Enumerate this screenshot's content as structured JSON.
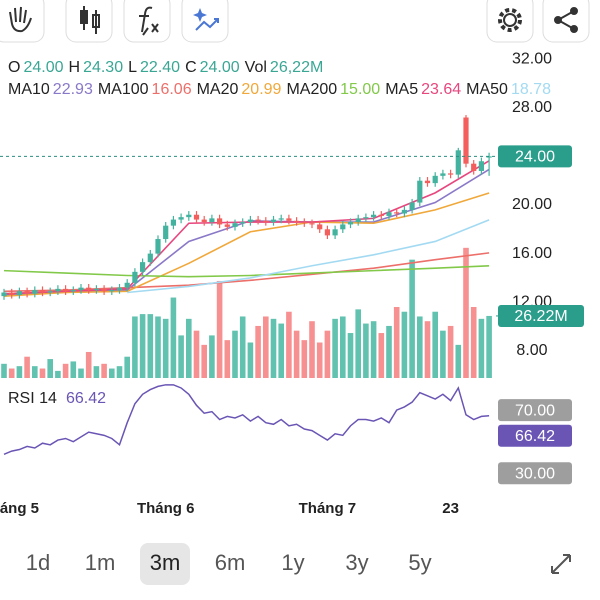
{
  "chart_data": {
    "type": "candlestick",
    "ohlc_legend": [
      {
        "key": "O",
        "value": "24.00"
      },
      {
        "key": "H",
        "value": "24.30"
      },
      {
        "key": "L",
        "value": "22.40"
      },
      {
        "key": "C",
        "value": "24.00"
      },
      {
        "key": "Vol",
        "value": "26,22M"
      }
    ],
    "categories": [
      null,
      null,
      "áng 5",
      null,
      null,
      null,
      null,
      null,
      null,
      null,
      null,
      null,
      null,
      null,
      null,
      null,
      null,
      null,
      null,
      null,
      null,
      "Tháng 6",
      null,
      null,
      null,
      null,
      null,
      null,
      null,
      null,
      null,
      null,
      null,
      null,
      null,
      null,
      null,
      null,
      null,
      null,
      null,
      null,
      "Tháng 7",
      null,
      null,
      null,
      null,
      null,
      null,
      null,
      null,
      null,
      null,
      null,
      null,
      null,
      null,
      null,
      "23",
      null,
      null,
      null,
      null,
      null
    ],
    "open": [
      12.5,
      12.8,
      12.6,
      12.9,
      12.7,
      13.0,
      12.8,
      12.9,
      13.1,
      12.9,
      13.0,
      13.2,
      13.0,
      13.1,
      12.9,
      13.0,
      13.2,
      13.6,
      14.5,
      15.3,
      16.0,
      17.2,
      18.3,
      18.8,
      19.0,
      19.2,
      18.8,
      18.6,
      18.9,
      18.4,
      18.2,
      18.5,
      18.6,
      18.8,
      18.7,
      18.6,
      18.8,
      18.9,
      18.7,
      18.6,
      18.5,
      18.4,
      18.0,
      17.5,
      18.0,
      18.4,
      18.6,
      18.9,
      19.0,
      19.2,
      19.1,
      19.4,
      19.3,
      19.6,
      20.2,
      22.0,
      21.8,
      22.4,
      22.6,
      22.5,
      27.2,
      23.4,
      22.8,
      24.0
    ],
    "high": [
      13.1,
      13.1,
      13.2,
      13.2,
      13.3,
      13.3,
      13.2,
      13.4,
      13.4,
      13.3,
      13.5,
      13.5,
      13.4,
      13.4,
      13.3,
      13.5,
      13.9,
      14.8,
      15.6,
      16.3,
      17.5,
      18.6,
      19.1,
      19.3,
      19.5,
      19.5,
      19.1,
      19.2,
      19.2,
      18.7,
      18.8,
      18.9,
      19.1,
      19.1,
      19.0,
      19.1,
      19.2,
      19.2,
      19.0,
      18.9,
      18.8,
      18.7,
      18.3,
      18.3,
      18.7,
      18.9,
      19.2,
      19.3,
      19.5,
      19.5,
      19.7,
      19.7,
      19.9,
      20.5,
      22.3,
      22.3,
      22.7,
      22.9,
      22.9,
      24.7,
      27.4,
      23.7,
      23.9,
      24.3
    ],
    "low": [
      12.2,
      12.3,
      12.3,
      12.4,
      12.4,
      12.5,
      12.5,
      12.6,
      12.6,
      12.6,
      12.7,
      12.7,
      12.7,
      12.6,
      12.6,
      12.7,
      12.9,
      13.3,
      14.2,
      15.0,
      15.7,
      16.9,
      18.0,
      18.5,
      18.7,
      18.5,
      18.3,
      18.3,
      18.1,
      17.9,
      17.9,
      18.2,
      18.3,
      18.4,
      18.3,
      18.3,
      18.5,
      18.4,
      18.3,
      18.2,
      18.1,
      17.7,
      17.2,
      17.2,
      17.7,
      18.1,
      18.3,
      18.6,
      18.7,
      18.8,
      18.8,
      19.0,
      19.0,
      19.3,
      19.9,
      21.5,
      21.5,
      22.1,
      22.2,
      22.2,
      23.1,
      22.5,
      22.5,
      22.4
    ],
    "close": [
      12.8,
      12.6,
      12.9,
      12.7,
      13.0,
      12.8,
      12.9,
      13.1,
      12.9,
      13.0,
      13.2,
      13.0,
      13.1,
      12.9,
      13.0,
      13.2,
      13.6,
      14.5,
      15.3,
      16.0,
      17.2,
      18.3,
      18.8,
      19.0,
      19.2,
      18.8,
      18.6,
      18.9,
      18.4,
      18.2,
      18.5,
      18.6,
      18.8,
      18.7,
      18.6,
      18.8,
      18.9,
      18.7,
      18.6,
      18.5,
      18.4,
      18.0,
      17.5,
      18.0,
      18.4,
      18.6,
      18.9,
      19.0,
      19.2,
      19.1,
      19.4,
      19.3,
      19.6,
      20.2,
      22.0,
      21.8,
      22.4,
      22.6,
      22.5,
      24.5,
      23.4,
      22.8,
      23.6,
      24.0
    ],
    "up_color": "#43b39f",
    "down_color": "#f25f5c",
    "ylim": [
      7,
      33
    ],
    "yticks": [
      {
        "value": 8,
        "label": "8.00"
      },
      {
        "value": 12,
        "label": "12.00"
      },
      {
        "value": 16,
        "label": "16.00"
      },
      {
        "value": 20,
        "label": "20.00"
      },
      {
        "value": 28,
        "label": "28.00"
      },
      {
        "value": 32,
        "label": "32.00"
      }
    ],
    "price_marker": {
      "value": 24,
      "label": "24.00"
    },
    "grid": false,
    "series": [
      {
        "name": "MA10",
        "color": "#8a78c8",
        "value_label": "22.93",
        "x": [
          0,
          8,
          16,
          24,
          32,
          40,
          48,
          56,
          63
        ],
        "values": [
          12.6,
          12.9,
          13.0,
          17.0,
          18.7,
          18.6,
          18.6,
          20.2,
          22.93
        ]
      },
      {
        "name": "MA100",
        "color": "#ec6f6a",
        "value_label": "16.06",
        "x": [
          0,
          8,
          16,
          24,
          32,
          40,
          48,
          56,
          63
        ],
        "values": [
          12.9,
          13.0,
          13.2,
          13.4,
          13.8,
          14.3,
          14.8,
          15.5,
          16.06
        ]
      },
      {
        "name": "MA20",
        "color": "#f0a83a",
        "value_label": "20.99",
        "x": [
          0,
          8,
          16,
          24,
          32,
          40,
          48,
          56,
          63
        ],
        "values": [
          12.5,
          12.8,
          12.9,
          15.2,
          17.8,
          18.6,
          18.5,
          19.6,
          20.99
        ]
      },
      {
        "name": "MA200",
        "color": "#82c94a",
        "value_label": "15.00",
        "x": [
          0,
          8,
          16,
          24,
          32,
          40,
          48,
          56,
          63
        ],
        "values": [
          14.6,
          14.4,
          14.2,
          14.1,
          14.2,
          14.4,
          14.6,
          14.8,
          15.0
        ]
      },
      {
        "name": "MA5",
        "color": "#e8467f",
        "value_label": "23.64",
        "x": [
          0,
          8,
          16,
          24,
          32,
          40,
          48,
          56,
          63
        ],
        "values": [
          12.7,
          12.9,
          13.1,
          18.5,
          18.6,
          18.6,
          18.9,
          21.0,
          23.64
        ]
      },
      {
        "name": "MA50",
        "color": "#a3daf2",
        "value_label": "18.78",
        "x": [
          16,
          24,
          32,
          40,
          48,
          56,
          63
        ],
        "values": [
          12.8,
          13.3,
          14.0,
          15.0,
          15.9,
          17.0,
          18.78
        ]
      }
    ],
    "volume": {
      "values": [
        6,
        4,
        5,
        9,
        5,
        4,
        8,
        3,
        6,
        7,
        4,
        11,
        5,
        6,
        4,
        5,
        9,
        26,
        27,
        27,
        26,
        25,
        34,
        18,
        25,
        20,
        14,
        18,
        41,
        16,
        20,
        26,
        15,
        22,
        26,
        25,
        23,
        28,
        20,
        16,
        24,
        15,
        20,
        25,
        26,
        19,
        29,
        23,
        24,
        19,
        22,
        30,
        28,
        50,
        26,
        24,
        28,
        20,
        22,
        14,
        55,
        30,
        25,
        26.22
      ],
      "ylim": [
        0,
        60
      ],
      "up_color": "#62c2b0",
      "down_color": "#f79191",
      "marker": {
        "value": 26.22,
        "label": "26.22M"
      }
    },
    "rsi": {
      "name": "RSI 14",
      "color": "#6a55b5",
      "value_label": "66.42",
      "values": [
        42,
        44,
        45,
        47,
        46,
        49,
        48,
        51,
        52,
        50,
        53,
        56,
        55,
        54,
        52,
        48,
        62,
        74,
        80,
        83,
        85,
        86,
        86,
        84,
        80,
        73,
        68,
        69,
        64,
        66,
        65,
        67,
        63,
        66,
        62,
        61,
        64,
        60,
        61,
        58,
        57,
        54,
        51,
        55,
        54,
        60,
        64,
        64,
        63,
        65,
        62,
        70,
        72,
        75,
        81,
        79,
        77,
        80,
        76,
        84,
        67,
        64,
        66,
        66.42
      ],
      "ylim": [
        20,
        90
      ],
      "yticks": [
        {
          "value": 70,
          "label": "70.00"
        },
        {
          "value": 30,
          "label": "30.00"
        }
      ]
    }
  },
  "ui": {
    "ranges": [
      "1d",
      "1m",
      "3m",
      "6m",
      "1y",
      "3y",
      "5y"
    ],
    "selected_range": "3m"
  }
}
